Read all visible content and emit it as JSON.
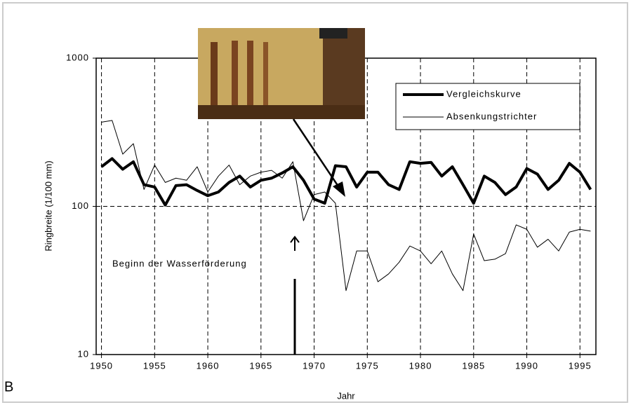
{
  "chart_data": {
    "type": "line",
    "panel_label": "B",
    "x_label": "Jahr",
    "y_label": "Ringbreite (1/100 mm)",
    "annotation": "Beginn der Wasserförderung",
    "log_y": true,
    "grid": true,
    "legend": "upper right",
    "x": [
      1950,
      1951,
      1952,
      1953,
      1954,
      1955,
      1956,
      1957,
      1958,
      1959,
      1960,
      1961,
      1962,
      1963,
      1964,
      1965,
      1966,
      1967,
      1968,
      1969,
      1970,
      1971,
      1972,
      1973,
      1974,
      1975,
      1976,
      1977,
      1978,
      1979,
      1980,
      1981,
      1982,
      1983,
      1984,
      1985,
      1986,
      1987,
      1988,
      1989,
      1990,
      1991,
      1992,
      1993,
      1994,
      1995,
      1996
    ],
    "series": [
      {
        "name": "Vergleichskurve",
        "color": "#000000",
        "width": 4,
        "values": [
          185,
          210,
          178,
          200,
          140,
          135,
          102,
          138,
          140,
          128,
          118,
          125,
          145,
          160,
          135,
          150,
          155,
          168,
          185,
          150,
          112,
          105,
          188,
          185,
          135,
          170,
          170,
          140,
          130,
          200,
          195,
          198,
          160,
          185,
          140,
          105,
          160,
          145,
          120,
          135,
          180,
          165,
          130,
          150,
          195,
          170,
          130
        ]
      },
      {
        "name": "Absenkungstrichter",
        "color": "#000000",
        "width": 1,
        "values": [
          370,
          380,
          225,
          265,
          130,
          190,
          145,
          155,
          150,
          185,
          125,
          160,
          190,
          140,
          160,
          170,
          175,
          155,
          200,
          80,
          120,
          125,
          105,
          27,
          50,
          50,
          31,
          35,
          42,
          54,
          50,
          41,
          50,
          35,
          27,
          65,
          43,
          44,
          48,
          75,
          70,
          53,
          60,
          50,
          67,
          70,
          68
        ]
      }
    ],
    "xlim": [
      1949.5,
      1996.5
    ],
    "ylim": [
      10,
      1000
    ],
    "xticks": [
      1950,
      1955,
      1960,
      1965,
      1970,
      1975,
      1980,
      1985,
      1990,
      1995
    ],
    "yticks": [
      10,
      100,
      1000
    ]
  }
}
